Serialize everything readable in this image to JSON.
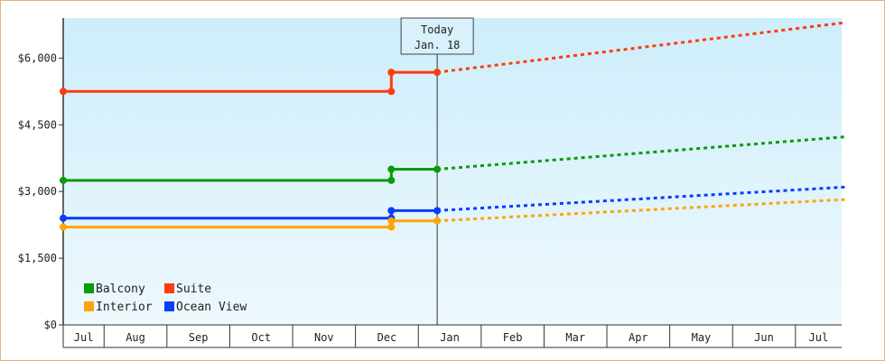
{
  "chart_data": {
    "type": "line",
    "title": "",
    "xlabel": "",
    "ylabel": "",
    "y_tick_labels": [
      "$0",
      "$1,500",
      "$3,000",
      "$4,500",
      "$6,000"
    ],
    "y_ticks": [
      0,
      1500,
      3000,
      4500,
      6000
    ],
    "ylim": [
      0,
      6900
    ],
    "x_tick_labels": [
      "Jul",
      "Aug",
      "Sep",
      "Oct",
      "Nov",
      "Dec",
      "Jan",
      "Feb",
      "Mar",
      "Apr",
      "May",
      "Jun",
      "Jul"
    ],
    "x_range_months": [
      0,
      12.45
    ],
    "today_marker": {
      "line1": "Today",
      "line2": "Jan. 18",
      "x_month": 5.95
    },
    "grid": false,
    "legend_position": "bottom-left",
    "colors": {
      "Balcony": "#0a9a0a",
      "Suite": "#ff3b0f",
      "Interior": "#ffa500",
      "Ocean View": "#0a3cff"
    },
    "series": [
      {
        "name": "Suite",
        "historical": [
          [
            0,
            5250
          ],
          [
            5.22,
            5250
          ],
          [
            5.22,
            5680
          ],
          [
            5.95,
            5680
          ]
        ],
        "projected": [
          [
            5.95,
            5680
          ],
          [
            12.45,
            6800
          ]
        ]
      },
      {
        "name": "Balcony",
        "historical": [
          [
            0,
            3250
          ],
          [
            5.22,
            3250
          ],
          [
            5.22,
            3500
          ],
          [
            5.95,
            3500
          ]
        ],
        "projected": [
          [
            5.95,
            3500
          ],
          [
            12.45,
            4230
          ]
        ]
      },
      {
        "name": "Ocean View",
        "historical": [
          [
            0,
            2400
          ],
          [
            5.22,
            2400
          ],
          [
            5.22,
            2570
          ],
          [
            5.95,
            2570
          ]
        ],
        "projected": [
          [
            5.95,
            2570
          ],
          [
            12.45,
            3100
          ]
        ]
      },
      {
        "name": "Interior",
        "historical": [
          [
            0,
            2200
          ],
          [
            5.22,
            2200
          ],
          [
            5.22,
            2340
          ],
          [
            5.95,
            2340
          ]
        ],
        "projected": [
          [
            5.95,
            2340
          ],
          [
            12.45,
            2820
          ]
        ]
      }
    ],
    "legend": [
      {
        "name": "Balcony",
        "row": 0,
        "col": 0
      },
      {
        "name": "Suite",
        "row": 0,
        "col": 1
      },
      {
        "name": "Interior",
        "row": 1,
        "col": 0
      },
      {
        "name": "Ocean View",
        "row": 1,
        "col": 1
      }
    ]
  }
}
